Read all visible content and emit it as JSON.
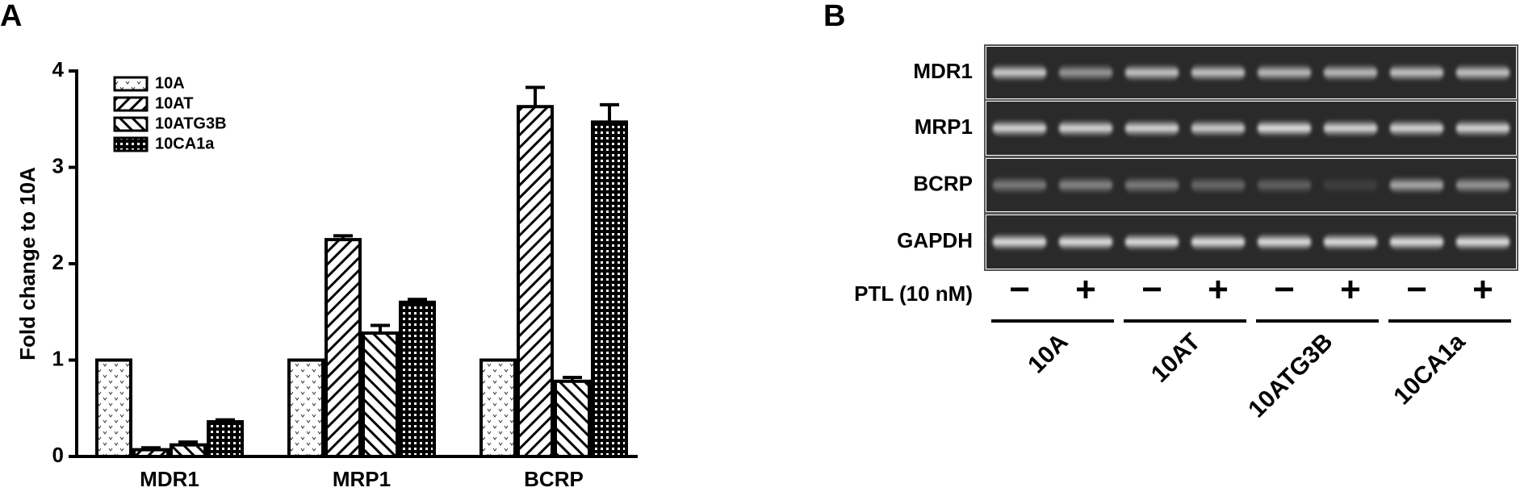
{
  "panels": [
    "A",
    "B"
  ],
  "chart_data": {
    "type": "bar",
    "y_label": "Fold change to 10A",
    "categories": [
      "MDR1",
      "MRP1",
      "BCRP"
    ],
    "series": [
      {
        "name": "10A",
        "color": "#000000",
        "pattern": "dots",
        "values": [
          1,
          1,
          1
        ],
        "errors": [
          0,
          0,
          0
        ]
      },
      {
        "name": "10AT",
        "color": "#000000",
        "pattern": "back-hatch",
        "values": [
          0.07,
          2.25,
          3.63
        ],
        "errors": [
          0.02,
          0.04,
          0.2
        ]
      },
      {
        "name": "10ATG3B",
        "color": "#000000",
        "pattern": "forward-hatch",
        "values": [
          0.12,
          1.28,
          0.78
        ],
        "errors": [
          0.03,
          0.08,
          0.04
        ]
      },
      {
        "name": "10CA1a",
        "color": "#000000",
        "pattern": "grid",
        "values": [
          0.36,
          1.6,
          3.47
        ],
        "errors": [
          0.02,
          0.03,
          0.18
        ]
      }
    ],
    "ylim": [
      0,
      4
    ],
    "yticks": [
      0,
      1,
      2,
      3,
      4
    ]
  },
  "gel": {
    "rows": [
      "MDR1",
      "MRP1",
      "BCRP",
      "GAPDH"
    ],
    "treatment_label": "PTL (10 nM)",
    "treatments": [
      "−",
      "+",
      "−",
      "+",
      "−",
      "+",
      "−",
      "+"
    ],
    "cell_lines": [
      "10A",
      "10AT",
      "10ATG3B",
      "10CA1a"
    ]
  }
}
